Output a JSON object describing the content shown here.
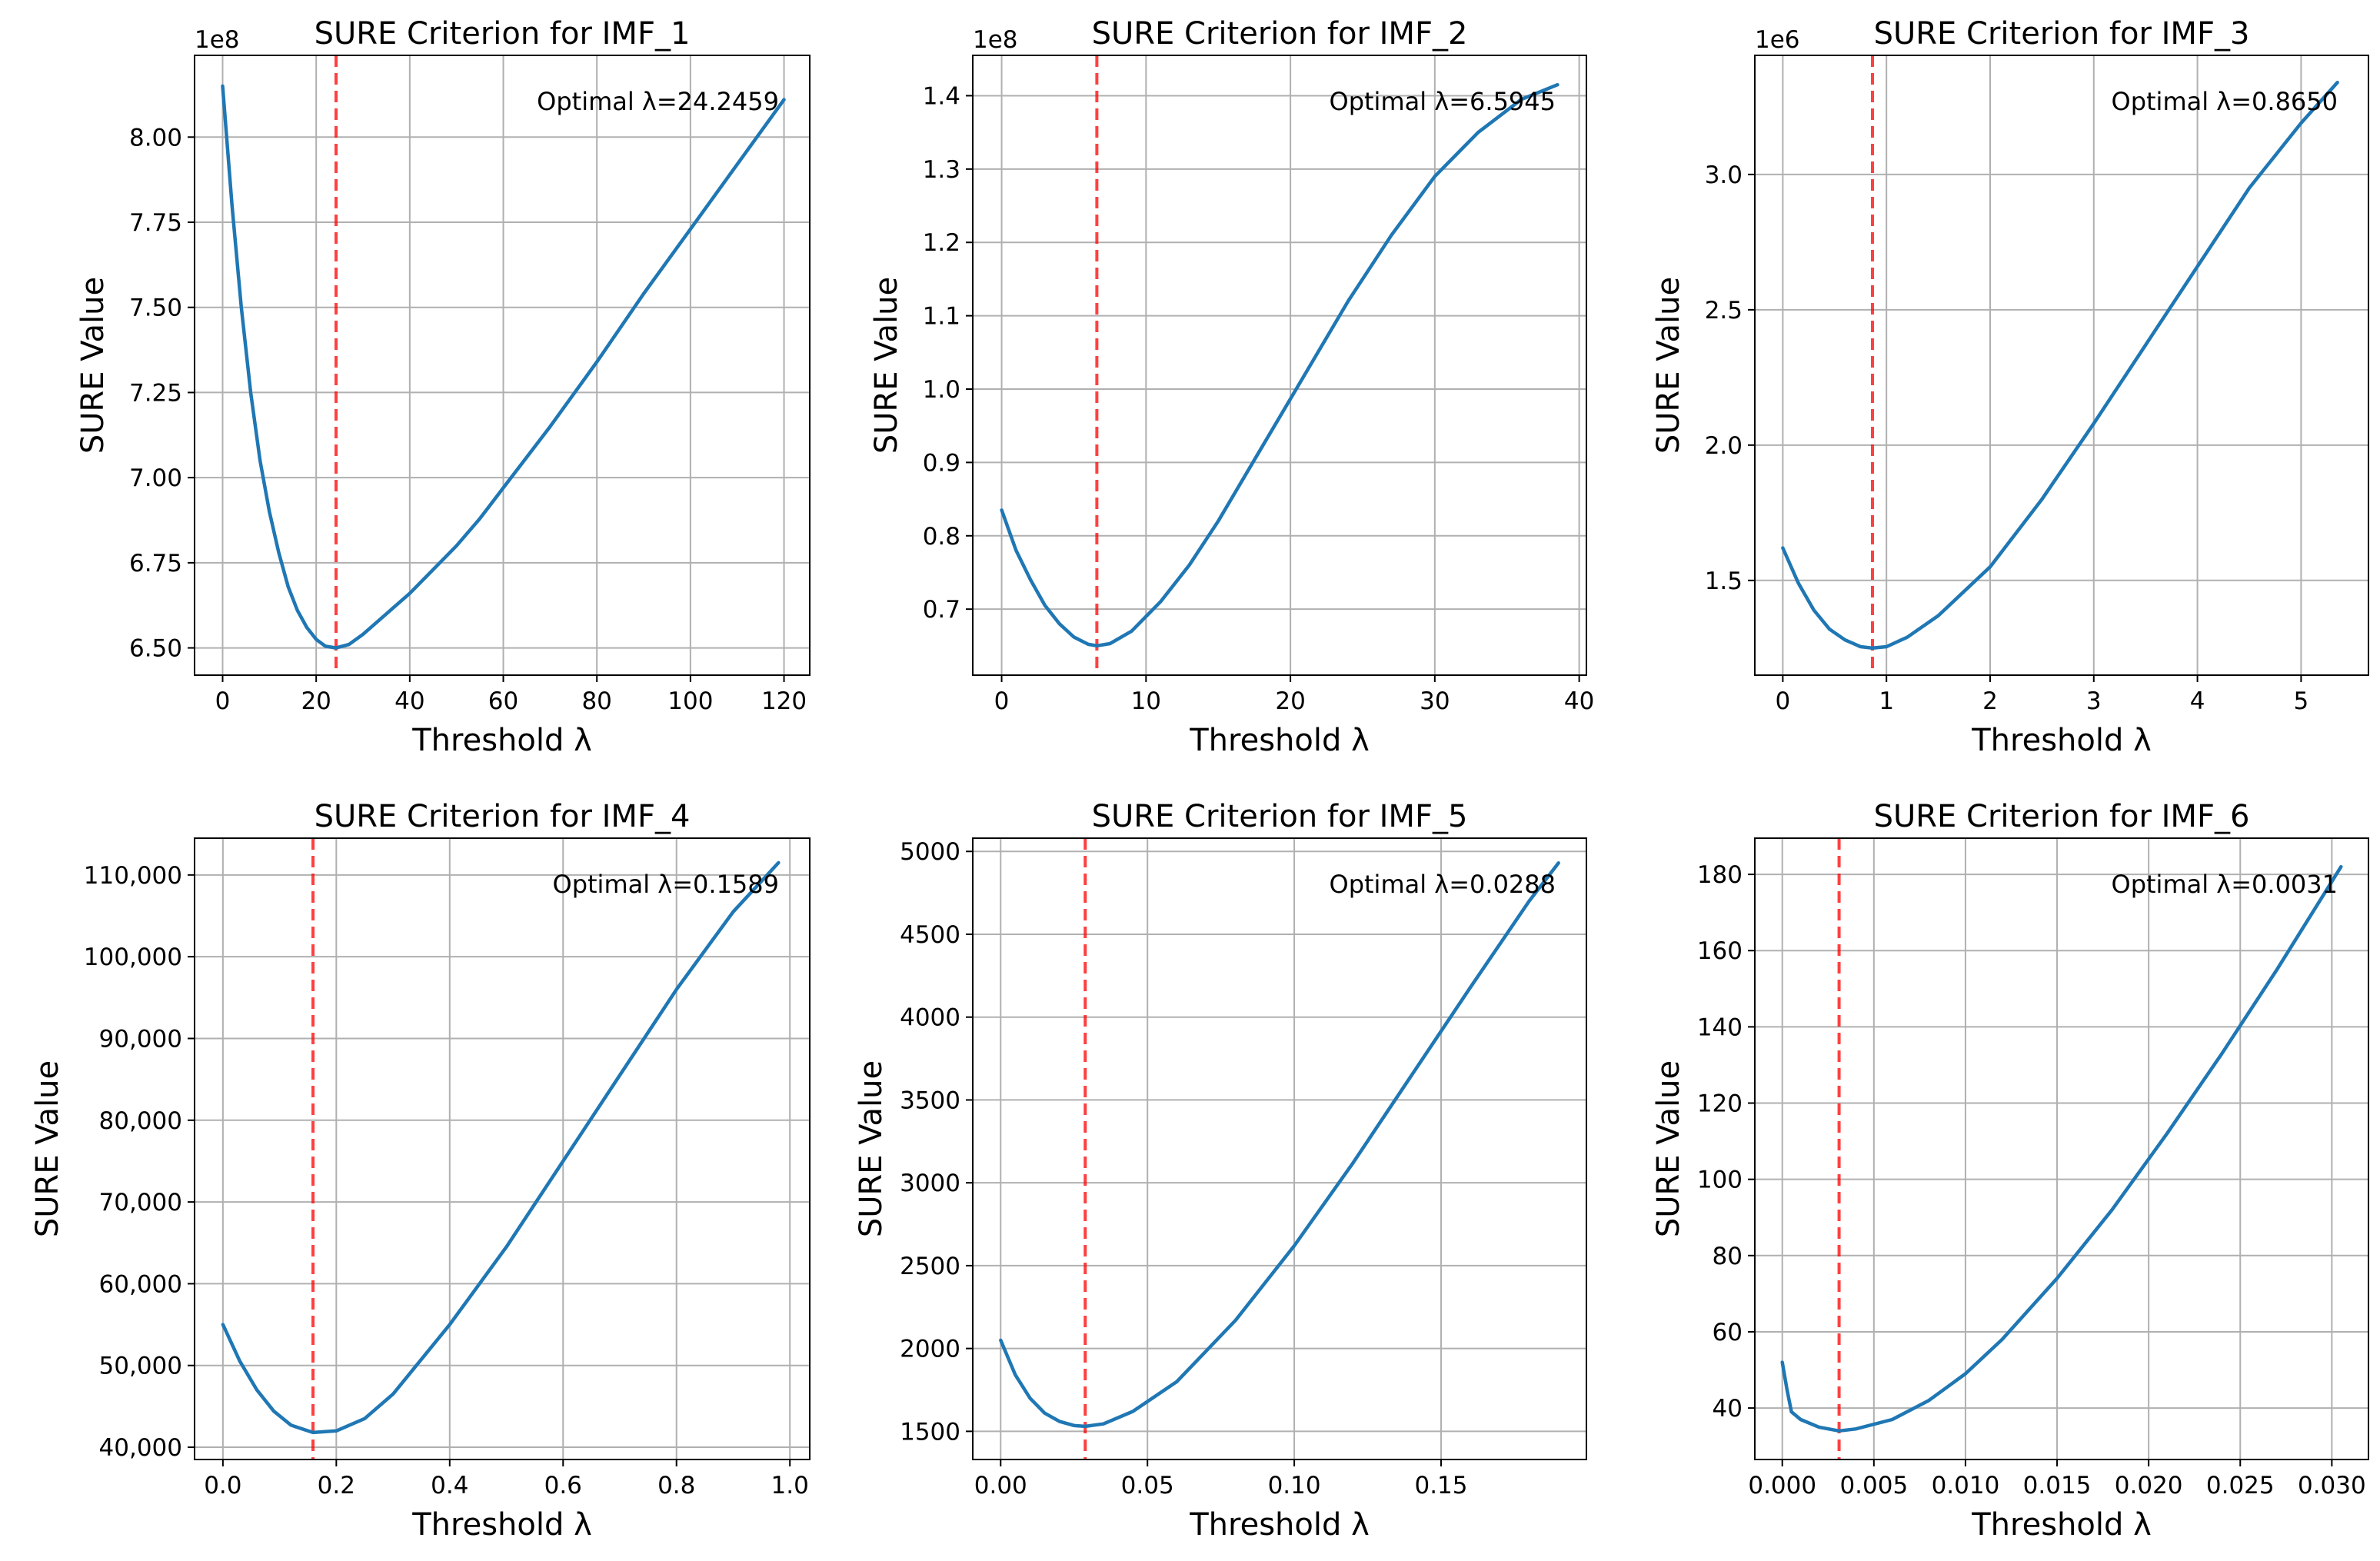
{
  "chart_data": [
    {
      "type": "line",
      "title": "SURE Criterion for IMF_1",
      "xlabel": "Threshold λ",
      "ylabel": "SURE Value",
      "multiplier_label": "1e8",
      "xlim": [
        -6,
        125.5
      ],
      "ylim": [
        6.42,
        8.24
      ],
      "xticks": [
        0,
        20,
        40,
        60,
        80,
        100,
        120
      ],
      "xtick_labels": [
        "0",
        "20",
        "40",
        "60",
        "80",
        "100",
        "120"
      ],
      "yticks": [
        6.5,
        6.75,
        7.0,
        7.25,
        7.5,
        7.75,
        8.0
      ],
      "ytick_labels": [
        "6.50",
        "6.75",
        "7.00",
        "7.25",
        "7.50",
        "7.75",
        "8.00"
      ],
      "optimal_lambda": 24.2459,
      "annotation": "Optimal λ=24.2459",
      "grid": true,
      "series": [
        {
          "name": "SURE",
          "x": [
            0,
            2,
            4,
            6,
            8,
            10,
            12,
            14,
            16,
            18,
            20,
            22,
            24.25,
            27,
            30,
            35,
            40,
            45,
            50,
            55,
            60,
            70,
            80,
            90,
            100,
            110,
            120
          ],
          "y": [
            8.15,
            7.8,
            7.5,
            7.25,
            7.05,
            6.9,
            6.78,
            6.68,
            6.61,
            6.56,
            6.525,
            6.505,
            6.5,
            6.51,
            6.54,
            6.6,
            6.66,
            6.73,
            6.8,
            6.88,
            6.97,
            7.15,
            7.34,
            7.54,
            7.73,
            7.92,
            8.11
          ]
        }
      ]
    },
    {
      "type": "line",
      "title": "SURE Criterion for IMF_2",
      "xlabel": "Threshold λ",
      "ylabel": "SURE Value",
      "multiplier_label": "1e8",
      "xlim": [
        -2,
        40.5
      ],
      "ylim": [
        0.61,
        1.455
      ],
      "xticks": [
        0,
        10,
        20,
        30,
        40
      ],
      "xtick_labels": [
        "0",
        "10",
        "20",
        "30",
        "40"
      ],
      "yticks": [
        0.7,
        0.8,
        0.9,
        1.0,
        1.1,
        1.2,
        1.3,
        1.4
      ],
      "ytick_labels": [
        "0.7",
        "0.8",
        "0.9",
        "1.0",
        "1.1",
        "1.2",
        "1.3",
        "1.4"
      ],
      "optimal_lambda": 6.5945,
      "annotation": "Optimal λ=6.5945",
      "grid": true,
      "series": [
        {
          "name": "SURE",
          "x": [
            0,
            1,
            2,
            3,
            4,
            5,
            6,
            6.6,
            7.5,
            9,
            11,
            13,
            15,
            18,
            21,
            24,
            27,
            30,
            33,
            36,
            38.5
          ],
          "y": [
            0.835,
            0.78,
            0.74,
            0.705,
            0.68,
            0.662,
            0.652,
            0.65,
            0.653,
            0.67,
            0.71,
            0.76,
            0.82,
            0.92,
            1.02,
            1.12,
            1.21,
            1.29,
            1.35,
            1.395,
            1.415
          ]
        }
      ]
    },
    {
      "type": "line",
      "title": "SURE Criterion for IMF_3",
      "xlabel": "Threshold λ",
      "ylabel": "SURE Value",
      "multiplier_label": "1e6",
      "xlim": [
        -0.27,
        5.65
      ],
      "ylim": [
        1.15,
        3.44
      ],
      "xticks": [
        0,
        1,
        2,
        3,
        4,
        5
      ],
      "xtick_labels": [
        "0",
        "1",
        "2",
        "3",
        "4",
        "5"
      ],
      "yticks": [
        1.5,
        2.0,
        2.5,
        3.0
      ],
      "ytick_labels": [
        "1.5",
        "2.0",
        "2.5",
        "3.0"
      ],
      "optimal_lambda": 0.865,
      "annotation": "Optimal λ=0.8650",
      "grid": true,
      "series": [
        {
          "name": "SURE",
          "x": [
            0,
            0.15,
            0.3,
            0.45,
            0.6,
            0.75,
            0.865,
            1.0,
            1.2,
            1.5,
            2.0,
            2.5,
            3.0,
            3.5,
            4.0,
            4.5,
            5.0,
            5.35
          ],
          "y": [
            1.62,
            1.49,
            1.39,
            1.32,
            1.28,
            1.255,
            1.25,
            1.255,
            1.29,
            1.37,
            1.55,
            1.8,
            2.08,
            2.37,
            2.66,
            2.95,
            3.19,
            3.34
          ]
        }
      ]
    },
    {
      "type": "line",
      "title": "SURE Criterion for IMF_4",
      "xlabel": "Threshold λ",
      "ylabel": "SURE Value",
      "xlim": [
        -0.05,
        1.035
      ],
      "ylim": [
        38500,
        114500
      ],
      "xticks": [
        0.0,
        0.2,
        0.4,
        0.6,
        0.8,
        1.0
      ],
      "xtick_labels": [
        "0.0",
        "0.2",
        "0.4",
        "0.6",
        "0.8",
        "1.0"
      ],
      "yticks": [
        40000,
        50000,
        60000,
        70000,
        80000,
        90000,
        100000,
        110000
      ],
      "ytick_labels": [
        "40,000",
        "50,000",
        "60,000",
        "70,000",
        "80,000",
        "90,000",
        "100,000",
        "110,000"
      ],
      "optimal_lambda": 0.1589,
      "annotation": "Optimal λ=0.1589",
      "grid": true,
      "series": [
        {
          "name": "SURE",
          "x": [
            0,
            0.03,
            0.06,
            0.09,
            0.12,
            0.1589,
            0.2,
            0.25,
            0.3,
            0.4,
            0.5,
            0.6,
            0.7,
            0.8,
            0.9,
            0.98
          ],
          "y": [
            55000,
            50500,
            47000,
            44400,
            42700,
            41800,
            42000,
            43500,
            46500,
            55000,
            64500,
            75000,
            85500,
            96000,
            105500,
            111500
          ]
        }
      ]
    },
    {
      "type": "line",
      "title": "SURE Criterion for IMF_5",
      "xlabel": "Threshold λ",
      "ylabel": "SURE Value",
      "xlim": [
        -0.0095,
        0.1995
      ],
      "ylim": [
        1330,
        5080
      ],
      "xticks": [
        0.0,
        0.05,
        0.1,
        0.15
      ],
      "xtick_labels": [
        "0.00",
        "0.05",
        "0.10",
        "0.15"
      ],
      "yticks": [
        1500,
        2000,
        2500,
        3000,
        3500,
        4000,
        4500,
        5000
      ],
      "ytick_labels": [
        "1500",
        "2000",
        "2500",
        "3000",
        "3500",
        "4000",
        "4500",
        "5000"
      ],
      "optimal_lambda": 0.0288,
      "annotation": "Optimal λ=0.0288",
      "grid": true,
      "series": [
        {
          "name": "SURE",
          "x": [
            0,
            0.005,
            0.01,
            0.015,
            0.02,
            0.025,
            0.0288,
            0.035,
            0.045,
            0.06,
            0.08,
            0.1,
            0.12,
            0.14,
            0.16,
            0.18,
            0.19
          ],
          "y": [
            2050,
            1840,
            1700,
            1610,
            1560,
            1535,
            1530,
            1545,
            1620,
            1800,
            2170,
            2620,
            3120,
            3650,
            4180,
            4700,
            4930
          ]
        }
      ]
    },
    {
      "type": "line",
      "title": "SURE Criterion for IMF_6",
      "xlabel": "Threshold λ",
      "ylabel": "SURE Value",
      "xlim": [
        -0.0015,
        0.032
      ],
      "ylim": [
        26.5,
        189.5
      ],
      "xticks": [
        0.0,
        0.005,
        0.01,
        0.015,
        0.02,
        0.025,
        0.03
      ],
      "xtick_labels": [
        "0.000",
        "0.005",
        "0.010",
        "0.015",
        "0.020",
        "0.025",
        "0.030"
      ],
      "yticks": [
        40,
        60,
        80,
        100,
        120,
        140,
        160,
        180
      ],
      "ytick_labels": [
        "40",
        "60",
        "80",
        "100",
        "120",
        "140",
        "160",
        "180"
      ],
      "optimal_lambda": 0.0031,
      "annotation": "Optimal λ=0.0031",
      "grid": true,
      "series": [
        {
          "name": "SURE",
          "x": [
            0,
            0.00025,
            0.0005,
            0.001,
            0.002,
            0.0031,
            0.004,
            0.006,
            0.008,
            0.01,
            0.012,
            0.015,
            0.018,
            0.021,
            0.024,
            0.027,
            0.0305
          ],
          "y": [
            52,
            45,
            39,
            37,
            35,
            34,
            34.5,
            37,
            42,
            49,
            58,
            74,
            92,
            112,
            133,
            155,
            182
          ]
        }
      ]
    }
  ]
}
